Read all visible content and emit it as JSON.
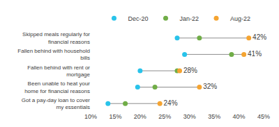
{
  "chart_data": {
    "type": "dumbbell",
    "orientation": "horizontal",
    "categories": [
      "Skipped meals regularly for financial reasons",
      "Fallen behind with household bills",
      "Fallen behind with rent or mortgage",
      "Been unable to heat your home for financial reasons",
      "Got a pay-day loan to cover my essentials"
    ],
    "series": [
      {
        "name": "Dec-20",
        "color": "#29c3ea",
        "marker": "circle",
        "values": [
          27.5,
          29,
          20,
          19.5,
          13.5
        ]
      },
      {
        "name": "Jan-22",
        "color": "#70ad47",
        "marker": "circle",
        "values": [
          32,
          38.5,
          27.5,
          23,
          17
        ]
      },
      {
        "name": "Aug-22",
        "color": "#f5a431",
        "marker": "circle",
        "values": [
          42,
          41,
          28,
          32,
          24
        ],
        "value_labels": [
          "42%",
          "41%",
          "28%",
          "32%",
          "24%"
        ]
      }
    ],
    "xlim": [
      10,
      45
    ],
    "xticks": [
      {
        "value": 10,
        "label": "10%"
      },
      {
        "value": 15,
        "label": "15%"
      },
      {
        "value": 20,
        "label": "20%"
      },
      {
        "value": 25,
        "label": "25%"
      },
      {
        "value": 30,
        "label": "30%"
      },
      {
        "value": 35,
        "label": "35%"
      },
      {
        "value": 40,
        "label": "40%"
      },
      {
        "value": 45,
        "label": "45%"
      }
    ],
    "grid": false,
    "legend": "top",
    "data_labels": true
  }
}
